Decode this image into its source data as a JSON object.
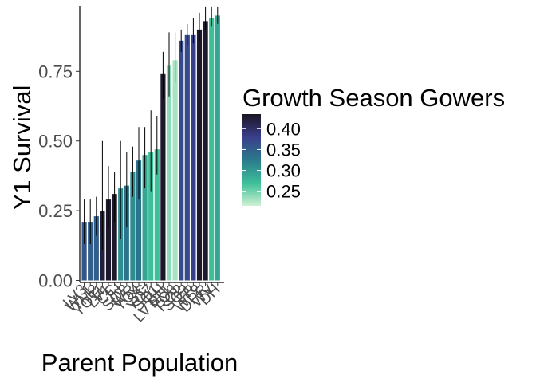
{
  "chart_data": {
    "type": "bar",
    "xlabel": "Parent Population",
    "ylabel": "Y1 Survival",
    "ylim": [
      0,
      0.98
    ],
    "yticks": [
      0.0,
      0.25,
      0.5,
      0.75
    ],
    "ytick_labels": [
      "0.00",
      "0.25",
      "0.50",
      "0.75"
    ],
    "grid": false,
    "legend": {
      "title": "Growth Season Gowers",
      "placement": "right",
      "type": "colorbar",
      "range": [
        0.215,
        0.435
      ],
      "ticks": [
        0.4,
        0.35,
        0.3,
        0.25
      ],
      "tick_labels": [
        "0.40",
        "0.35",
        "0.30",
        "0.25"
      ]
    },
    "categories": [
      "LV3",
      "WL1",
      "TM2",
      "YO11",
      "LV1",
      "CC",
      "IH",
      "SQ2",
      "WR",
      "YO4",
      "SC",
      "YO7",
      "SQ1",
      "BH",
      "LVTR1",
      "YO8",
      "RO2",
      "SQ3",
      "FR",
      "WL2",
      "DPR",
      "WV",
      "DH"
    ],
    "values": [
      0.21,
      0.21,
      0.23,
      0.25,
      0.29,
      0.31,
      0.33,
      0.34,
      0.39,
      0.43,
      0.45,
      0.46,
      0.47,
      0.74,
      0.77,
      0.79,
      0.86,
      0.88,
      0.88,
      0.9,
      0.93,
      0.94,
      0.95
    ],
    "error_low": [
      0.13,
      0.13,
      0.16,
      0.11,
      0.19,
      0.21,
      0.15,
      0.19,
      0.3,
      0.29,
      0.33,
      0.32,
      0.38,
      0.65,
      0.66,
      0.71,
      0.82,
      0.84,
      0.85,
      0.86,
      0.9,
      0.91,
      0.92
    ],
    "error_high": [
      0.29,
      0.29,
      0.3,
      0.5,
      0.41,
      0.39,
      0.5,
      0.46,
      0.48,
      0.55,
      0.55,
      0.61,
      0.59,
      0.82,
      0.89,
      0.89,
      0.9,
      0.92,
      0.94,
      0.96,
      0.98,
      0.98,
      0.98
    ],
    "color_values": [
      0.36,
      0.35,
      0.35,
      0.42,
      0.43,
      0.43,
      0.31,
      0.33,
      0.31,
      0.33,
      0.29,
      0.27,
      0.27,
      0.43,
      0.24,
      0.23,
      0.37,
      0.37,
      0.38,
      0.43,
      0.43,
      0.27,
      0.29
    ]
  },
  "colors": {
    "scale": [
      "#cdf0d2",
      "#3dbf99",
      "#2a7a8c",
      "#3a3f8c",
      "#1a1420"
    ]
  }
}
